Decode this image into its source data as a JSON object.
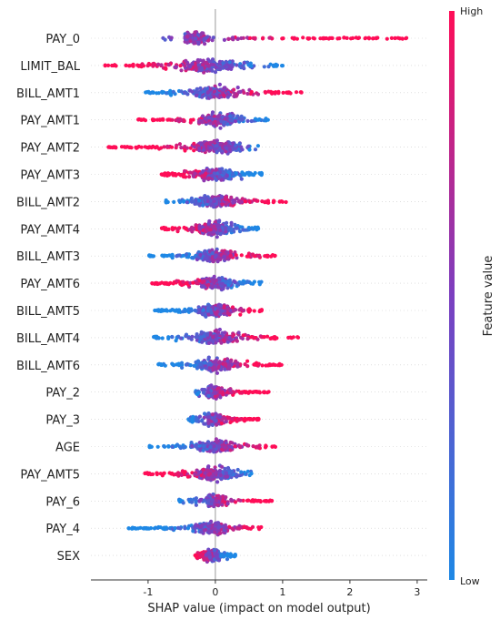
{
  "chart_data": {
    "type": "scatter",
    "subtype": "shap-beeswarm",
    "xlabel": "SHAP value (impact on model output)",
    "xticks": [
      -1,
      0,
      1,
      2,
      3
    ],
    "xlim": [
      -1.85,
      3.15
    ],
    "colorbar": {
      "label": "Feature value",
      "high": "High",
      "low": "Low",
      "low_color": "#1e88e5",
      "high_color": "#ff0d57"
    },
    "features": [
      {
        "name": "PAY_0",
        "min": -0.8,
        "max": 2.9,
        "core": [
          -0.45,
          0.45
        ],
        "mode": -0.3,
        "high_side": "right"
      },
      {
        "name": "LIMIT_BAL",
        "min": -1.65,
        "max": 1.0,
        "core": [
          -1.2,
          0.9
        ],
        "mode": -0.1,
        "high_side": "left"
      },
      {
        "name": "BILL_AMT1",
        "min": -1.05,
        "max": 1.3,
        "core": [
          -0.7,
          0.8
        ],
        "mode": 0.0,
        "high_side": "right"
      },
      {
        "name": "PAY_AMT1",
        "min": -1.15,
        "max": 0.8,
        "core": [
          -0.7,
          0.6
        ],
        "mode": 0.05,
        "high_side": "left"
      },
      {
        "name": "PAY_AMT2",
        "min": -1.6,
        "max": 0.65,
        "core": [
          -1.3,
          0.55
        ],
        "mode": 0.05,
        "high_side": "left"
      },
      {
        "name": "PAY_AMT3",
        "min": -0.8,
        "max": 0.7,
        "core": [
          -0.6,
          0.7
        ],
        "mode": 0.0,
        "high_side": "left"
      },
      {
        "name": "BILL_AMT2",
        "min": -0.8,
        "max": 1.1,
        "core": [
          -0.5,
          0.85
        ],
        "mode": 0.0,
        "high_side": "right"
      },
      {
        "name": "PAY_AMT4",
        "min": -0.8,
        "max": 0.65,
        "core": [
          -0.75,
          0.55
        ],
        "mode": 0.0,
        "high_side": "left"
      },
      {
        "name": "BILL_AMT3",
        "min": -1.0,
        "max": 0.9,
        "core": [
          -0.6,
          0.75
        ],
        "mode": 0.0,
        "high_side": "right"
      },
      {
        "name": "PAY_AMT6",
        "min": -0.95,
        "max": 0.7,
        "core": [
          -0.75,
          0.55
        ],
        "mode": 0.0,
        "high_side": "left"
      },
      {
        "name": "BILL_AMT5",
        "min": -0.9,
        "max": 0.7,
        "core": [
          -0.5,
          0.6
        ],
        "mode": 0.0,
        "high_side": "right"
      },
      {
        "name": "BILL_AMT4",
        "min": -0.95,
        "max": 1.25,
        "core": [
          -0.55,
          0.95
        ],
        "mode": 0.0,
        "high_side": "right"
      },
      {
        "name": "BILL_AMT6",
        "min": -0.85,
        "max": 1.0,
        "core": [
          -0.6,
          0.8
        ],
        "mode": 0.0,
        "high_side": "right"
      },
      {
        "name": "PAY_2",
        "min": -0.3,
        "max": 0.8,
        "core": [
          -0.1,
          0.75
        ],
        "mode": -0.05,
        "high_side": "right"
      },
      {
        "name": "PAY_3",
        "min": -0.4,
        "max": 0.65,
        "core": [
          -0.1,
          0.65
        ],
        "mode": -0.05,
        "high_side": "right"
      },
      {
        "name": "AGE",
        "min": -1.05,
        "max": 1.0,
        "core": [
          -0.6,
          0.7
        ],
        "mode": 0.0,
        "high_side": "right"
      },
      {
        "name": "PAY_AMT5",
        "min": -1.05,
        "max": 0.55,
        "core": [
          -1.0,
          0.5
        ],
        "mode": 0.0,
        "high_side": "left"
      },
      {
        "name": "PAY_6",
        "min": -0.55,
        "max": 0.85,
        "core": [
          -0.1,
          0.85
        ],
        "mode": -0.05,
        "high_side": "right"
      },
      {
        "name": "PAY_4",
        "min": -1.3,
        "max": 0.7,
        "core": [
          -0.5,
          0.7
        ],
        "mode": -0.05,
        "high_side": "right"
      },
      {
        "name": "SEX",
        "min": -0.3,
        "max": 0.3,
        "core": [
          -0.25,
          0.3
        ],
        "mode": -0.05,
        "high_side": "left"
      }
    ]
  }
}
